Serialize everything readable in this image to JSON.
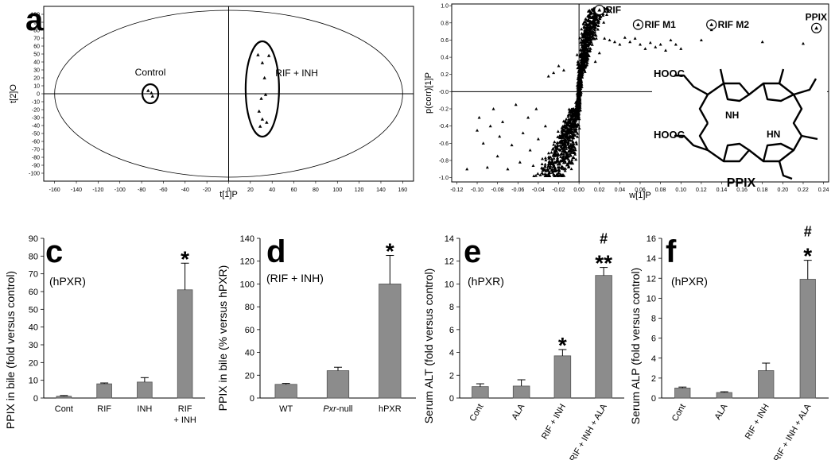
{
  "chart_data": [
    {
      "panel": "a",
      "type": "scatter",
      "xlabel": "t[1]P",
      "ylabel": "t[2]O",
      "xlim": [
        -170,
        170
      ],
      "ylim": [
        -110,
        110
      ],
      "xticks": [
        "-160",
        "-140",
        "-120",
        "-100",
        "-80",
        "-60",
        "-40",
        "-20",
        "0",
        "20",
        "40",
        "60",
        "80",
        "100",
        "120",
        "140",
        "160"
      ],
      "yticks": [
        "100",
        "90",
        "80",
        "70",
        "60",
        "50",
        "40",
        "30",
        "20",
        "10",
        "0",
        "-10",
        "-20",
        "-30",
        "-40",
        "-50",
        "-60",
        "-70",
        "-80",
        "-90",
        "-100"
      ],
      "groups": [
        {
          "name": "Control",
          "points": [
            [
              -74,
              4
            ],
            [
              -71,
              1
            ],
            [
              -70,
              -3
            ]
          ]
        },
        {
          "name": "RIF + INH",
          "points": [
            [
              27,
              49
            ],
            [
              37,
              48
            ],
            [
              31,
              39
            ],
            [
              33,
              20
            ],
            [
              34,
              -1
            ],
            [
              30,
              -6
            ],
            [
              28,
              -22
            ],
            [
              31,
              -32
            ],
            [
              35,
              -36
            ],
            [
              29,
              -41
            ]
          ]
        }
      ]
    },
    {
      "panel": "b",
      "type": "scatter",
      "xlabel": "w[1]P",
      "ylabel": "p(corr)[1]P",
      "xlim": [
        -0.125,
        0.245
      ],
      "ylim": [
        -1.05,
        1.02
      ],
      "xticks": [
        "-0.12",
        "-0.10",
        "-0.08",
        "-0.06",
        "-0.04",
        "-0.02",
        "0.00",
        "0.02",
        "0.04",
        "0.06",
        "0.08",
        "0.10",
        "0.12",
        "0.14",
        "0.16",
        "0.18",
        "0.20",
        "0.22",
        "0.24"
      ],
      "yticks": [
        "1.0",
        "0.8",
        "0.6",
        "0.4",
        "0.2",
        "-0.0",
        "-0.2",
        "-0.4",
        "-0.6",
        "-0.8",
        "-1.0"
      ],
      "labeled_points": [
        {
          "name": "RIF",
          "x": 0.02,
          "y": 0.95
        },
        {
          "name": "RIF M1",
          "x": 0.058,
          "y": 0.78
        },
        {
          "name": "RIF M2",
          "x": 0.13,
          "y": 0.78
        },
        {
          "name": "PPIX",
          "x": 0.233,
          "y": 0.74
        }
      ],
      "structure": {
        "hooc_top": "HOOC",
        "hooc_bottom": "HOOC",
        "nh": "NH",
        "hn": "HN",
        "name": "PPIX"
      }
    },
    {
      "panel": "c",
      "type": "bar",
      "condition": "(hPXR)",
      "ylabel": "PPIX in bile (fold versus control)",
      "ylim": [
        0,
        90
      ],
      "yticks": [
        "0",
        "10",
        "20",
        "30",
        "40",
        "50",
        "60",
        "70",
        "80",
        "90"
      ],
      "categories": [
        "Cont",
        "RIF",
        "INH",
        "RIF + INH"
      ],
      "values": [
        1,
        8,
        9,
        61
      ],
      "errors": [
        0.4,
        0.5,
        2.5,
        15
      ],
      "marks": [
        "",
        "",
        "",
        "*"
      ]
    },
    {
      "panel": "d",
      "type": "bar",
      "condition": "(RIF + INH)",
      "ylabel": "PPIX in bile (% versus hPXR)",
      "ylim": [
        0,
        140
      ],
      "yticks": [
        "0",
        "20",
        "40",
        "60",
        "80",
        "100",
        "120",
        "140"
      ],
      "categories": [
        "WT",
        "Pxr-null",
        "hPXR"
      ],
      "values": [
        12,
        24,
        100
      ],
      "errors": [
        0.8,
        3,
        25
      ],
      "marks": [
        "",
        "",
        "*"
      ]
    },
    {
      "panel": "e",
      "type": "bar",
      "condition": "(hPXR)",
      "ylabel": "Serum ALT (fold versus control)",
      "ylim": [
        0,
        14
      ],
      "yticks": [
        "0",
        "2",
        "4",
        "6",
        "8",
        "10",
        "12",
        "14"
      ],
      "categories": [
        "Cont",
        "ALA",
        "RIF + INH",
        "RIF + INH + ALA"
      ],
      "values": [
        1,
        1.05,
        3.7,
        10.75
      ],
      "errors": [
        0.25,
        0.55,
        0.55,
        0.7
      ],
      "marks": [
        "",
        "",
        "*",
        "**"
      ],
      "marks_hash": [
        "",
        "",
        "",
        "#"
      ]
    },
    {
      "panel": "f",
      "type": "bar",
      "condition": "(hPXR)",
      "ylabel": "Serum ALP (fold versus control)",
      "ylim": [
        0,
        16
      ],
      "yticks": [
        "0",
        "2",
        "4",
        "6",
        "8",
        "10",
        "12",
        "14",
        "16"
      ],
      "categories": [
        "Cont",
        "ALA",
        "RIF + INH",
        "RIF + INH + ALA"
      ],
      "values": [
        1,
        0.55,
        2.75,
        11.9
      ],
      "errors": [
        0.1,
        0.08,
        0.75,
        1.9
      ],
      "marks": [
        "",
        "",
        "",
        "*"
      ],
      "marks_hash": [
        "",
        "",
        "",
        "#"
      ]
    }
  ]
}
